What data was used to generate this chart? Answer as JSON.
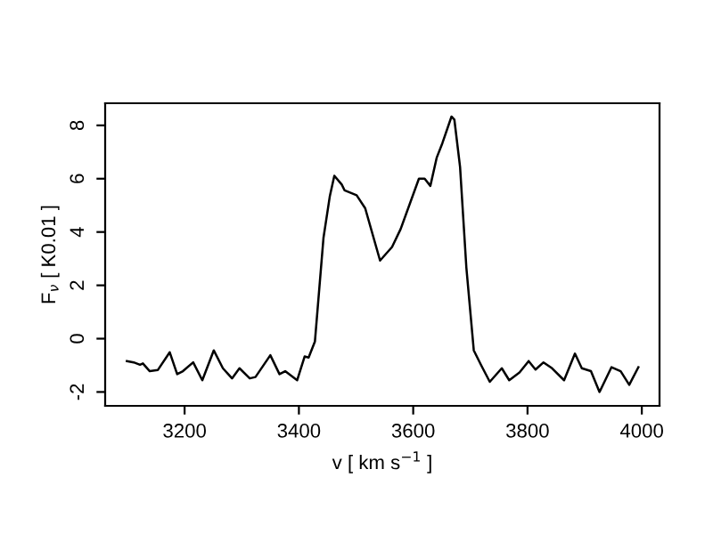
{
  "chart_data": {
    "type": "line",
    "xlabel": "v [ km s$^{−1}$ ]",
    "ylabel": "F$_{ν}$ [ K0.01 ]",
    "x": [
      3099,
      3111,
      3122,
      3127,
      3139,
      3153,
      3174,
      3187,
      3197,
      3215,
      3231,
      3251,
      3267,
      3283,
      3296,
      3314,
      3324,
      3350,
      3366,
      3376,
      3397,
      3410,
      3417,
      3428,
      3443,
      3454,
      3462,
      3475,
      3480,
      3501,
      3516,
      3542,
      3563,
      3578,
      3610,
      3620,
      3630,
      3641,
      3651,
      3667,
      3672,
      3682,
      3693,
      3706,
      3719,
      3734,
      3755,
      3768,
      3786,
      3802,
      3814,
      3828,
      3843,
      3864,
      3883,
      3895,
      3911,
      3926,
      3947,
      3963,
      3978,
      3994
    ],
    "values": [
      -0.84,
      -0.89,
      -0.98,
      -0.93,
      -1.22,
      -1.18,
      -0.51,
      -1.33,
      -1.22,
      -0.89,
      -1.56,
      -0.44,
      -1.11,
      -1.49,
      -1.11,
      -1.49,
      -1.44,
      -0.62,
      -1.33,
      -1.22,
      -1.56,
      -0.67,
      -0.71,
      -0.11,
      3.78,
      5.33,
      6.11,
      5.78,
      5.56,
      5.38,
      4.89,
      2.93,
      3.44,
      4.11,
      6.0,
      6.0,
      5.73,
      6.78,
      7.33,
      8.33,
      8.22,
      6.44,
      2.67,
      -0.44,
      -1.0,
      -1.62,
      -1.11,
      -1.56,
      -1.27,
      -0.84,
      -1.16,
      -0.89,
      -1.11,
      -1.56,
      -0.56,
      -1.11,
      -1.22,
      -2.0,
      -1.07,
      -1.22,
      -1.73,
      -1.07
    ],
    "color": "#000000",
    "xlim": [
      3061,
      4031
    ],
    "ylim": [
      -2.52,
      8.83
    ],
    "xticks": [
      3200,
      3400,
      3600,
      3800,
      4000
    ],
    "yticks": [
      -2,
      0,
      2,
      4,
      6,
      8
    ],
    "grid": false,
    "legend": false
  }
}
